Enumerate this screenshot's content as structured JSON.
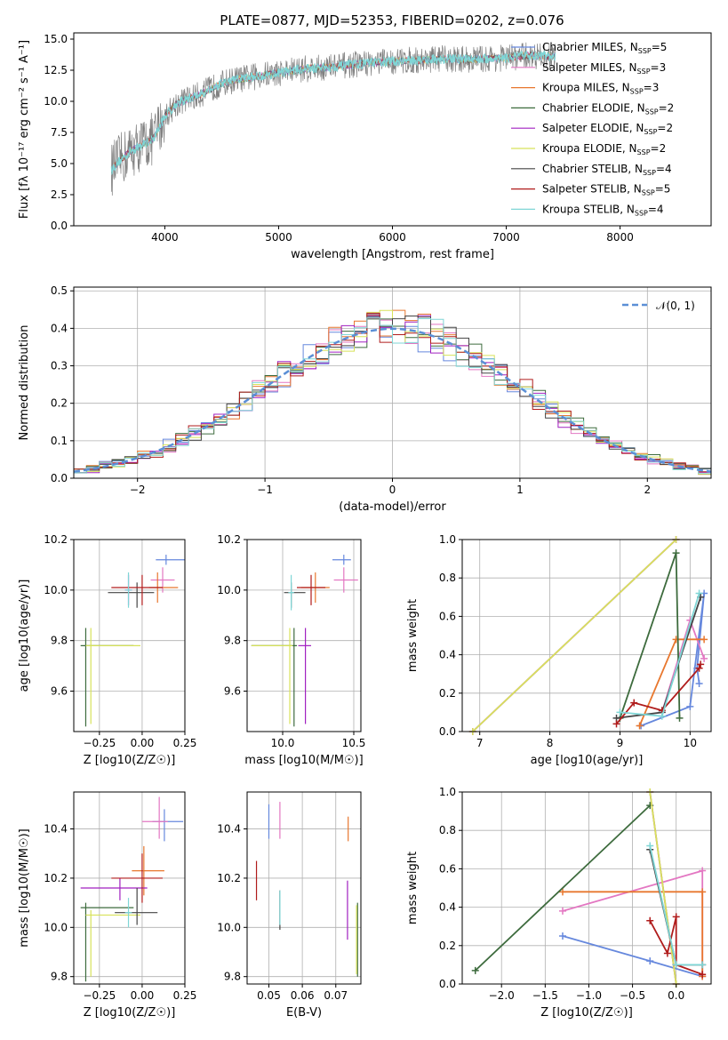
{
  "figure": {
    "title": "PLATE=0877, MJD=52353, FIBERID=0202, z=0.076"
  },
  "models": [
    {
      "name": "Chabrier MILES",
      "nssp": "5",
      "color": "#6688dd"
    },
    {
      "name": "Salpeter MILES",
      "nssp": "3",
      "color": "#e377c2"
    },
    {
      "name": "Kroupa MILES",
      "nssp": "3",
      "color": "#e8772e"
    },
    {
      "name": "Chabrier ELODIE",
      "nssp": "2",
      "color": "#3d6b3d"
    },
    {
      "name": "Salpeter ELODIE",
      "nssp": "2",
      "color": "#a020c0"
    },
    {
      "name": "Kroupa ELODIE",
      "nssp": "2",
      "color": "#d8e25a"
    },
    {
      "name": "Chabrier STELIB",
      "nssp": "4",
      "color": "#444444"
    },
    {
      "name": "Salpeter STELIB",
      "nssp": "5",
      "color": "#b01c1c"
    },
    {
      "name": "Kroupa STELIB",
      "nssp": "4",
      "color": "#7fd6d6"
    }
  ],
  "chart_data": [
    {
      "id": "spectrum",
      "type": "line",
      "title": "PLATE=0877, MJD=52353, FIBERID=0202, z=0.076",
      "xlabel": "wavelength [Angstrom, rest frame]",
      "ylabel": "Flux [fλ 10⁻¹⁷ erg cm⁻² s⁻¹ A⁻¹]",
      "xlim": [
        3200,
        8800
      ],
      "ylim": [
        0,
        15.5
      ],
      "xticks": [
        4000,
        5000,
        6000,
        7000,
        8000
      ],
      "yticks": [
        0.0,
        2.5,
        5.0,
        7.5,
        10.0,
        12.5,
        15.0
      ],
      "data_color": "#808080",
      "model_color": "#7fd6d6",
      "continuum_x": [
        3530,
        3600,
        3700,
        3800,
        3900,
        4000,
        4100,
        4200,
        4300,
        4400,
        4500,
        4600,
        4800,
        5000,
        5200,
        5400,
        5600,
        5800,
        6000,
        6200,
        6400,
        6600,
        6800,
        7000,
        7200,
        7430
      ],
      "continuum_y": [
        4.5,
        5.2,
        6.0,
        6.5,
        7.0,
        8.8,
        9.8,
        10.2,
        10.5,
        11.0,
        11.4,
        11.7,
        12.0,
        12.3,
        12.6,
        12.7,
        12.9,
        13.1,
        13.2,
        13.3,
        13.4,
        13.4,
        13.4,
        13.5,
        13.7,
        13.6
      ],
      "legend_loc": "right",
      "grid": false
    },
    {
      "id": "residuals",
      "type": "histogram",
      "xlabel": "(data-model)/error",
      "ylabel": "Normed distribution",
      "xlim": [
        -2.5,
        2.5
      ],
      "ylim": [
        0,
        0.51
      ],
      "xticks": [
        -2,
        -1,
        0,
        1,
        2
      ],
      "yticks": [
        0.0,
        0.1,
        0.2,
        0.3,
        0.4,
        0.5
      ],
      "bin_width": 0.1,
      "reference": {
        "label": "𝒩(0, 1)",
        "mean": 0,
        "sigma": 1,
        "color": "#5b8fd6"
      },
      "legend_loc": "top-right",
      "grid": true
    },
    {
      "id": "age_vs_Z",
      "type": "errorbar",
      "xlabel": "Z [log10(Z/Z☉)]",
      "ylabel": "age [log10(age/yr)]",
      "xlim": [
        -0.4,
        0.25
      ],
      "ylim": [
        9.44,
        10.2
      ],
      "xticks": [
        -0.25,
        0.0,
        0.25
      ],
      "yticks": [
        9.6,
        9.8,
        10.0,
        10.2
      ],
      "points": [
        {
          "m": 0,
          "x": 0.14,
          "y": 10.12,
          "ex": [
            0.06,
            0.16
          ],
          "ey": [
            0.02,
            0.02
          ]
        },
        {
          "m": 1,
          "x": 0.12,
          "y": 10.04,
          "ex": [
            0.07,
            0.07
          ],
          "ey": [
            0.05,
            0.05
          ]
        },
        {
          "m": 2,
          "x": 0.09,
          "y": 10.01,
          "ex": [
            0.05,
            0.12
          ],
          "ey": [
            0.06,
            0.06
          ]
        },
        {
          "m": 3,
          "x": -0.33,
          "y": 9.78,
          "ex": [
            0.03,
            0.28
          ],
          "ey": [
            0.32,
            0.07
          ]
        },
        {
          "m": 4,
          "x": -0.08,
          "y": 10.0,
          "ex": [
            0.02,
            0.02
          ],
          "ey": [
            0.06,
            0.06
          ]
        },
        {
          "m": 5,
          "x": -0.3,
          "y": 9.78,
          "ex": [
            0.03,
            0.29
          ],
          "ey": [
            0.31,
            0.07
          ]
        },
        {
          "m": 6,
          "x": -0.03,
          "y": 9.99,
          "ex": [
            0.17,
            0.1
          ],
          "ey": [
            0.06,
            0.04
          ]
        },
        {
          "m": 7,
          "x": 0.0,
          "y": 10.01,
          "ex": [
            0.18,
            0.12
          ],
          "ey": [
            0.07,
            0.05
          ]
        },
        {
          "m": 8,
          "x": -0.08,
          "y": 10.0,
          "ex": [
            0.02,
            0.02
          ],
          "ey": [
            0.07,
            0.07
          ]
        }
      ],
      "grid": true
    },
    {
      "id": "age_vs_mass",
      "type": "errorbar",
      "xlabel": "mass [log10(M/M☉)]",
      "ylabel": "",
      "xlim": [
        9.75,
        10.55
      ],
      "ylim": [
        9.44,
        10.2
      ],
      "xticks": [
        10.0,
        10.5
      ],
      "yticks": [
        9.6,
        9.8,
        10.0,
        10.2
      ],
      "points": [
        {
          "m": 0,
          "x": 10.43,
          "y": 10.12,
          "ex": [
            0.08,
            0.05
          ],
          "ey": [
            0.02,
            0.02
          ]
        },
        {
          "m": 1,
          "x": 10.43,
          "y": 10.04,
          "ex": [
            0.07,
            0.1
          ],
          "ey": [
            0.05,
            0.05
          ]
        },
        {
          "m": 2,
          "x": 10.23,
          "y": 10.01,
          "ex": [
            0.1,
            0.1
          ],
          "ey": [
            0.06,
            0.06
          ]
        },
        {
          "m": 3,
          "x": 10.08,
          "y": 9.78,
          "ex": [
            0.3,
            0.02
          ],
          "ey": [
            0.32,
            0.07
          ]
        },
        {
          "m": 4,
          "x": 10.16,
          "y": 9.78,
          "ex": [
            0.05,
            0.04
          ],
          "ey": [
            0.31,
            0.07
          ]
        },
        {
          "m": 5,
          "x": 10.05,
          "y": 9.78,
          "ex": [
            0.27,
            0.02
          ],
          "ey": [
            0.31,
            0.07
          ]
        },
        {
          "m": 6,
          "x": 10.06,
          "y": 9.99,
          "ex": [
            0.05,
            0.1
          ],
          "ey": [
            0.06,
            0.04
          ]
        },
        {
          "m": 7,
          "x": 10.2,
          "y": 10.01,
          "ex": [
            0.1,
            0.1
          ],
          "ey": [
            0.07,
            0.05
          ]
        },
        {
          "m": 8,
          "x": 10.06,
          "y": 9.99,
          "ex": [
            0.02,
            0.02
          ],
          "ey": [
            0.07,
            0.07
          ]
        }
      ],
      "grid": true
    },
    {
      "id": "mass_vs_Z",
      "type": "errorbar",
      "xlabel": "Z [log10(Z/Z☉)]",
      "ylabel": "mass [log10(M/M☉)]",
      "xlim": [
        -0.4,
        0.25
      ],
      "ylim": [
        9.77,
        10.55
      ],
      "xticks": [
        -0.25,
        0.0,
        0.25
      ],
      "yticks": [
        9.8,
        10.0,
        10.2,
        10.4
      ],
      "points": [
        {
          "m": 0,
          "x": 0.13,
          "y": 10.43,
          "ex": [
            0.07,
            0.11
          ],
          "ey": [
            0.08,
            0.05
          ]
        },
        {
          "m": 1,
          "x": 0.1,
          "y": 10.43,
          "ex": [
            0.1,
            0.05
          ],
          "ey": [
            0.07,
            0.1
          ]
        },
        {
          "m": 2,
          "x": 0.01,
          "y": 10.23,
          "ex": [
            0.07,
            0.12
          ],
          "ey": [
            0.1,
            0.1
          ]
        },
        {
          "m": 3,
          "x": -0.33,
          "y": 10.08,
          "ex": [
            0.03,
            0.28
          ],
          "ey": [
            0.3,
            0.02
          ]
        },
        {
          "m": 4,
          "x": -0.13,
          "y": 10.16,
          "ex": [
            0.23,
            0.16
          ],
          "ey": [
            0.05,
            0.04
          ]
        },
        {
          "m": 5,
          "x": -0.3,
          "y": 10.05,
          "ex": [
            0.03,
            0.29
          ],
          "ey": [
            0.25,
            0.02
          ]
        },
        {
          "m": 6,
          "x": -0.03,
          "y": 10.06,
          "ex": [
            0.13,
            0.12
          ],
          "ey": [
            0.05,
            0.1
          ]
        },
        {
          "m": 7,
          "x": 0.0,
          "y": 10.2,
          "ex": [
            0.18,
            0.12
          ],
          "ey": [
            0.1,
            0.1
          ]
        },
        {
          "m": 8,
          "x": -0.08,
          "y": 10.06,
          "ex": [
            0.02,
            0.02
          ],
          "ey": [
            0.06,
            0.06
          ]
        }
      ],
      "grid": true
    },
    {
      "id": "mass_vs_EBV",
      "type": "errorbar",
      "xlabel": "E(B-V)",
      "ylabel": "",
      "xlim": [
        0.0435,
        0.0775
      ],
      "ylim": [
        9.77,
        10.55
      ],
      "xticks": [
        0.05,
        0.06,
        0.07
      ],
      "yticks": [
        9.8,
        10.0,
        10.2,
        10.4
      ],
      "points": [
        {
          "m": 0,
          "x": 0.05,
          "y": 10.43,
          "ex": [
            0,
            0
          ],
          "ey": [
            0.07,
            0.07
          ]
        },
        {
          "m": 1,
          "x": 0.0533,
          "y": 10.43,
          "ex": [
            0,
            0
          ],
          "ey": [
            0.07,
            0.08
          ]
        },
        {
          "m": 2,
          "x": 0.0737,
          "y": 10.4,
          "ex": [
            0,
            0
          ],
          "ey": [
            0.05,
            0.05
          ]
        },
        {
          "m": 3,
          "x": 0.0765,
          "y": 9.95,
          "ex": [
            0,
            0
          ],
          "ey": [
            0.15,
            0.15
          ]
        },
        {
          "m": 4,
          "x": 0.0735,
          "y": 10.07,
          "ex": [
            0,
            0
          ],
          "ey": [
            0.12,
            0.12
          ]
        },
        {
          "m": 5,
          "x": 0.0762,
          "y": 9.95,
          "ex": [
            0,
            0
          ],
          "ey": [
            0.14,
            0.14
          ]
        },
        {
          "m": 6,
          "x": 0.0533,
          "y": 10.07,
          "ex": [
            0,
            0
          ],
          "ey": [
            0.08,
            0.08
          ]
        },
        {
          "m": 7,
          "x": 0.0463,
          "y": 10.19,
          "ex": [
            0,
            0
          ],
          "ey": [
            0.08,
            0.08
          ]
        },
        {
          "m": 8,
          "x": 0.0533,
          "y": 10.08,
          "ex": [
            0,
            0
          ],
          "ey": [
            0.07,
            0.07
          ]
        }
      ],
      "grid": true
    },
    {
      "id": "weight_vs_age",
      "type": "line",
      "xlabel": "age [log10(age/yr)]",
      "ylabel": "mass weight",
      "xlim": [
        6.75,
        10.3
      ],
      "ylim": [
        0,
        1.0
      ],
      "xticks": [
        7,
        8,
        9,
        10
      ],
      "yticks": [
        0.0,
        0.2,
        0.4,
        0.6,
        0.8,
        1.0
      ],
      "series": [
        {
          "m": 0,
          "x": [
            9.3,
            10.0,
            10.2,
            10.1,
            10.13
          ],
          "y": [
            0.03,
            0.13,
            0.72,
            0.33,
            0.25
          ]
        },
        {
          "m": 1,
          "x": [
            9.6,
            10.0,
            10.2
          ],
          "y": [
            0.1,
            0.58,
            0.38
          ]
        },
        {
          "m": 2,
          "x": [
            9.28,
            9.8,
            10.2
          ],
          "y": [
            0.03,
            0.48,
            0.48
          ]
        },
        {
          "m": 3,
          "x": [
            9.0,
            9.8,
            9.85
          ],
          "y": [
            0.07,
            0.93,
            0.07
          ]
        },
        {
          "m": 4,
          "x": [
            6.9,
            9.8
          ],
          "y": [
            0.0,
            1.0
          ]
        },
        {
          "m": 5,
          "x": [
            6.9,
            9.8
          ],
          "y": [
            0.0,
            1.0
          ]
        },
        {
          "m": 6,
          "x": [
            8.95,
            9.6,
            10.15
          ],
          "y": [
            0.07,
            0.1,
            0.7
          ]
        },
        {
          "m": 7,
          "x": [
            8.95,
            9.2,
            9.6,
            10.13,
            10.15
          ],
          "y": [
            0.04,
            0.15,
            0.11,
            0.33,
            0.35
          ]
        },
        {
          "m": 8,
          "x": [
            9.0,
            9.6,
            10.13
          ],
          "y": [
            0.1,
            0.08,
            0.72
          ]
        }
      ],
      "grid": true
    },
    {
      "id": "weight_vs_Z",
      "type": "line",
      "xlabel": "Z [log10(Z/Z☉)]",
      "ylabel": "mass weight",
      "xlim": [
        -2.45,
        0.4
      ],
      "ylim": [
        0,
        1.0
      ],
      "xticks": [
        -2.0,
        -1.5,
        -1.0,
        -0.5,
        0.0
      ],
      "yticks": [
        0.0,
        0.2,
        0.4,
        0.6,
        0.8,
        1.0
      ],
      "series": [
        {
          "m": 0,
          "x": [
            -1.3,
            -0.3,
            0.3
          ],
          "y": [
            0.25,
            0.12,
            0.04
          ]
        },
        {
          "m": 1,
          "x": [
            -1.3,
            0.3,
            0.3
          ],
          "y": [
            0.38,
            0.59,
            0.04
          ]
        },
        {
          "m": 2,
          "x": [
            -1.3,
            0.3,
            0.3
          ],
          "y": [
            0.48,
            0.48,
            0.04
          ]
        },
        {
          "m": 3,
          "x": [
            -2.3,
            -0.3
          ],
          "y": [
            0.07,
            0.93
          ]
        },
        {
          "m": 4,
          "x": [
            -0.3,
            0.0
          ],
          "y": [
            1.0,
            0.0
          ]
        },
        {
          "m": 5,
          "x": [
            -0.3,
            0.0
          ],
          "y": [
            1.0,
            0.0
          ]
        },
        {
          "m": 6,
          "x": [
            -0.3,
            0.0,
            0.3
          ],
          "y": [
            0.7,
            0.1,
            0.1
          ]
        },
        {
          "m": 7,
          "x": [
            -0.3,
            -0.1,
            0.0,
            0.0,
            0.3
          ],
          "y": [
            0.33,
            0.16,
            0.35,
            0.1,
            0.05
          ]
        },
        {
          "m": 8,
          "x": [
            -0.3,
            0.0,
            0.3
          ],
          "y": [
            0.72,
            0.1,
            0.1
          ]
        }
      ],
      "grid": true
    }
  ]
}
